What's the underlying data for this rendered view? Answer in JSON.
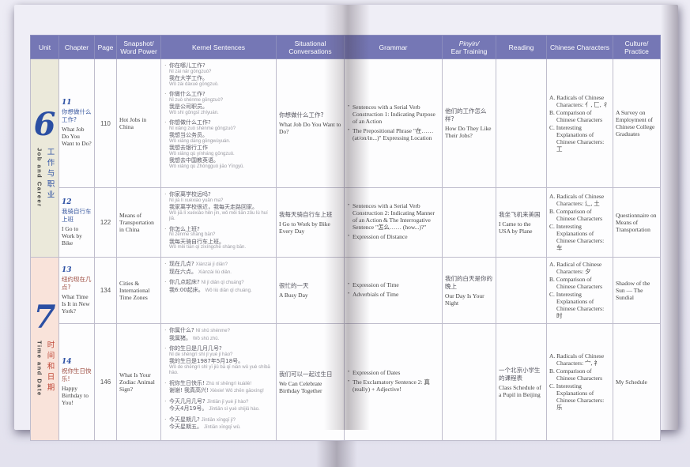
{
  "colors": {
    "header_bg": "#7577b5",
    "unit6_bg": "#ebe9da",
    "unit7_bg": "#f9e3da",
    "unit_number_blue": "#2b4fa3",
    "unit7_red": "#c0493a",
    "page_bg": "#e8e7f2"
  },
  "columns": {
    "unit": "Unit",
    "chapter": "Chapter",
    "page": "Page",
    "snapshot": "Snapshot/ Word Power",
    "kernel": "Kernel Sentences",
    "situational": "Situational Conversations",
    "grammar": "Grammar",
    "pinyin_a": "Pinyin/",
    "pinyin_b": "Ear Training",
    "reading": "Reading",
    "characters": "Chinese Characters",
    "culture": "Culture/ Practice"
  },
  "units": [
    {
      "number": "6",
      "zh": "工作与职业",
      "en": "Job and Career"
    },
    {
      "number": "7",
      "zh": "时间和日期",
      "en": "Time and Date"
    }
  ],
  "rows": [
    {
      "chapter": {
        "num": "11",
        "zh": "你想做什么工作?",
        "en": "What Job Do You Want to Do?"
      },
      "page": "110",
      "snapshot": "Hot Jobs in China",
      "kernel": [
        {
          "segs": [
            {
              "zh": "你在哪儿工作?",
              "py": "Nǐ zài nǎr gōngzuò?",
              "inline": false
            },
            {
              "zh": "我在大学工作。",
              "py": "Wǒ zài dàxué gōngzuò.",
              "inline": false
            }
          ]
        },
        {
          "segs": [
            {
              "zh": "你做什么工作?",
              "py": "Nǐ zuò shénme gōngzuò?",
              "inline": false
            },
            {
              "zh": "我是公司职员。",
              "py": "Wǒ shì gōngsī zhíyuán.",
              "inline": false
            }
          ]
        },
        {
          "segs": [
            {
              "zh": "你想做什么工作?",
              "py": "Nǐ xiǎng zuò shénme gōngzuò?",
              "inline": false
            },
            {
              "zh": "我想当公务员。",
              "py": "Wǒ xiǎng dāng gōngwùyuán.",
              "inline": false
            },
            {
              "zh": "我想去银行工作",
              "py": "Wǒ xiǎng qù yínháng gōngzuò.",
              "inline": false
            },
            {
              "zh": "我想去中国教英语。",
              "py": "Wǒ xiǎng qù Zhōngguó jiāo Yīngyǔ.",
              "inline": false
            }
          ]
        }
      ],
      "situational": {
        "zh": "你想做什么工作?",
        "en": "What Job Do You Want to Do?"
      },
      "grammar": [
        "Sentences with a Serial Verb Construction 1: Indicating Purpose of an Action",
        "The Prepositional Phrase \"在…… (at/on/in...)\" Expressing Location"
      ],
      "pinyin": {
        "zh": "他们的工作怎么样?",
        "en": "How Do They Like Their Jobs?"
      },
      "reading": {
        "zh": "",
        "en": ""
      },
      "characters": [
        "A. Radicals of Chinese Characters: 亻, 匚, 彳",
        "B. Comparison of Chinese Characters",
        "C. Interesting Explanations of Chinese Characters: 工"
      ],
      "culture": "A Survey on Employment of Chinese College Graduates"
    },
    {
      "chapter": {
        "num": "12",
        "zh": "我骑自行车上班",
        "en": "I Go to Work by Bike"
      },
      "page": "122",
      "snapshot": "Means of Transportation in China",
      "kernel": [
        {
          "segs": [
            {
              "zh": "你家离学校远吗?",
              "py": "Nǐ jiā lí xuéxiào yuǎn ma?",
              "inline": false
            },
            {
              "zh": "我家离学校很近，我每天走路回家。",
              "py": "Wǒ jiā lí xuéxiào hěn jìn, wǒ měi tiān zǒu lù huí jiā.",
              "inline": false
            }
          ]
        },
        {
          "segs": [
            {
              "zh": "你怎么上班?",
              "py": "Nǐ zěnme shàng bān?",
              "inline": false
            },
            {
              "zh": "我每天骑自行车上班。",
              "py": "Wǒ měi tiān qí zìxíngchē shàng bān.",
              "inline": false
            }
          ]
        }
      ],
      "situational": {
        "zh": "我每天骑自行车上班",
        "en": "I Go to Work by Bike Every Day"
      },
      "grammar": [
        "Sentences with a Serial Verb Construction 2: Indicating Manner of an Action & The Interrogative Sentence \"怎么…… (how...)?\"",
        "Expression of Distance"
      ],
      "pinyin": {
        "zh": "",
        "en": ""
      },
      "reading": {
        "zh": "我坐飞机来美国",
        "en": "I Came to the USA by Plane"
      },
      "characters": [
        "A. Radicals of Chinese Characters: 辶, 土",
        "B. Comparison of Chinese Characters",
        "C. Interesting Explanations of Chinese Characters: 车"
      ],
      "culture": "Questionnaire on Means of Transportation"
    },
    {
      "chapter": {
        "num": "13",
        "zh": "纽约现在几点?",
        "en": "What Time Is It in New York?"
      },
      "page": "134",
      "snapshot": "Cities & International Time Zones",
      "kernel": [
        {
          "segs": [
            {
              "zh": "现在几点?",
              "py": "Xiànzài jǐ diǎn?",
              "inline": true
            },
            {
              "zh": "现在六点。",
              "py": "Xiànzài liù diǎn.",
              "inline": true
            }
          ]
        },
        {
          "segs": [
            {
              "zh": "你几点起床?",
              "py": "Nǐ jǐ diǎn qǐ chuáng?",
              "inline": true
            },
            {
              "zh": "我6:00起床。",
              "py": "Wǒ liù diǎn qǐ chuáng.",
              "inline": true
            }
          ]
        }
      ],
      "situational": {
        "zh": "很忙的一天",
        "en": "A Busy Day"
      },
      "grammar": [
        "Expression of Time",
        "Adverbials of Time"
      ],
      "pinyin": {
        "zh": "我们的白天是你的晚上",
        "en": "Our Day Is Your Night"
      },
      "reading": {
        "zh": "",
        "en": ""
      },
      "characters": [
        "A. Radical of Chinese Characters: 夕",
        "B. Comparison of Chinese Characters",
        "C. Interesting Explanations of Chinese Characters: 时"
      ],
      "culture": "Shadow of the Sun — The Sundial"
    },
    {
      "chapter": {
        "num": "14",
        "zh": "祝你生日快乐!",
        "en": "Happy Birthday to You!"
      },
      "page": "146",
      "snapshot": "What Is Your Zodiac Animal Sign?",
      "kernel": [
        {
          "segs": [
            {
              "zh": "你属什么?",
              "py": "Nǐ shǔ shénme?",
              "inline": true
            },
            {
              "zh": "我属猪。",
              "py": "Wǒ shǔ zhū.",
              "inline": true
            }
          ]
        },
        {
          "segs": [
            {
              "zh": "你的生日是几月几号?",
              "py": "Nǐ de shēngrì shì jǐ yuè jǐ hào?",
              "inline": false
            },
            {
              "zh": "我的生日是1987年5月18号。",
              "py": "Wǒ de shēngrì shì yī jiǔ bā qī nián wǔ yuè shíbā hào.",
              "inline": false
            }
          ]
        },
        {
          "segs": [
            {
              "zh": "祝你生日快乐!",
              "py": "Zhù nǐ shēngrì kuàilè!",
              "inline": true
            },
            {
              "zh": "谢谢! 我真高兴!",
              "py": "Xièxie! Wǒ zhēn gāoxìng!",
              "inline": true
            }
          ]
        },
        {
          "segs": [
            {
              "zh": "今天几月几号?",
              "py": "Jīntiān jǐ yuè jǐ hào?",
              "inline": true
            },
            {
              "zh": "今天4月19号。",
              "py": "Jīntiān sì yuè shíjiǔ hào.",
              "inline": true
            }
          ]
        },
        {
          "segs": [
            {
              "zh": "今天星期几?",
              "py": "Jīntiān xīngqī jǐ?",
              "inline": true
            },
            {
              "zh": "今天星期五。",
              "py": "Jīntiān xīngqī wǔ.",
              "inline": true
            }
          ]
        }
      ],
      "situational": {
        "zh": "我们可以一起过生日",
        "en": "We Can Celebrate Birthday Together"
      },
      "grammar": [
        "Expression of Dates",
        "The Exclamatory Sentence 2: 真 (really) + Adjective!"
      ],
      "pinyin": {
        "zh": "",
        "en": ""
      },
      "reading": {
        "zh": "一个北京小学生的课程表",
        "en": "Class Schedule of a Pupil in Beijing"
      },
      "characters": [
        "A. Radicals of Chinese Characters: 宀, 礻",
        "B. Comparison of Chinese Characters",
        "C. Interesting Explanations of Chinese Characters: 乐"
      ],
      "culture": "My Schedule"
    }
  ]
}
